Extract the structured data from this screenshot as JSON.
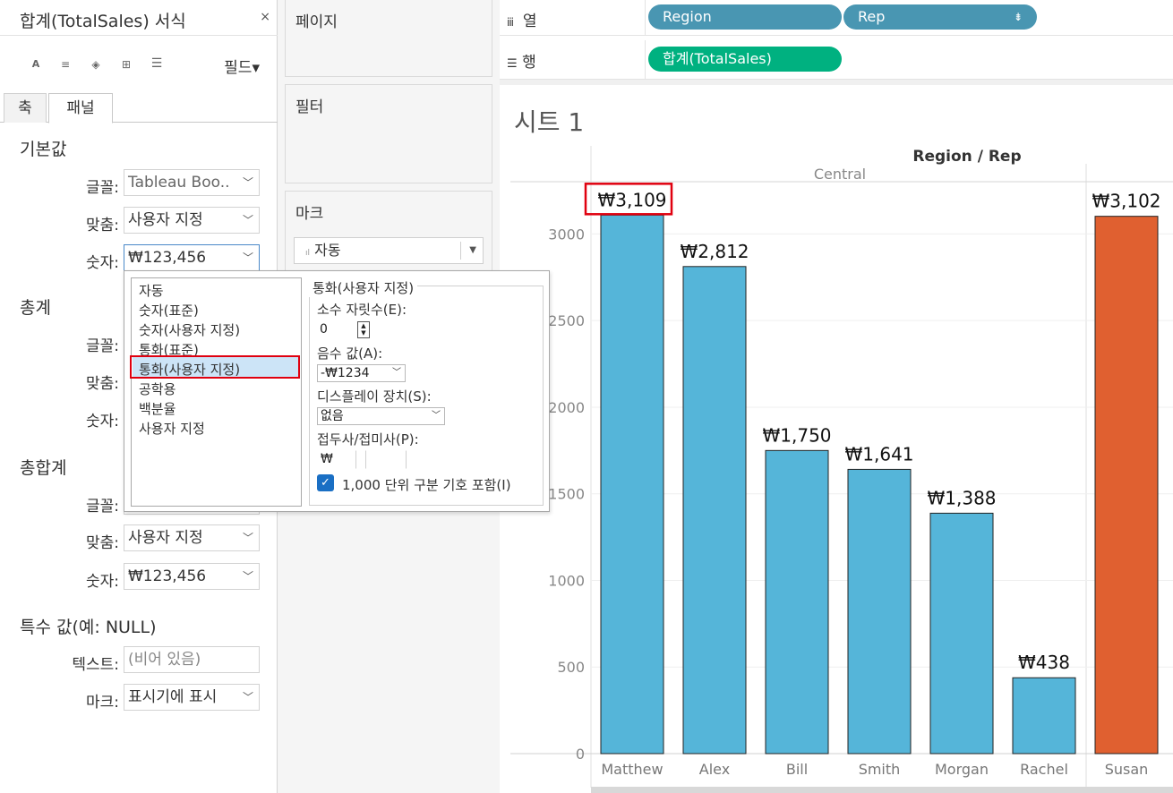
{
  "format_pane": {
    "title": "합계(TotalSales) 서식",
    "close_label": "×",
    "fields_label": "필드▾",
    "tabs": [
      "축",
      "패널"
    ],
    "sections": {
      "default": {
        "title": "기본값",
        "font_label": "글꼴:",
        "font_value": "Tableau Boo..",
        "align_label": "맞춤:",
        "align_value": "사용자 지정",
        "number_label": "숫자:",
        "number_value": "₩123,456"
      },
      "totals": {
        "title": "총계",
        "font_label": "글꼴:",
        "align_label": "맞춤:",
        "number_label": "숫자:"
      },
      "grand_totals": {
        "title": "총합계",
        "font_label": "글꼴:",
        "align_label": "맞춤:",
        "align_value": "사용자 지정",
        "number_label": "숫자:",
        "number_value": "₩123,456"
      },
      "special": {
        "title": "특수 값(예: NULL)",
        "text_label": "텍스트:",
        "text_value": "(비어 있음)",
        "marks_label": "마크:",
        "marks_value": "표시기에 표시"
      }
    }
  },
  "number_popup": {
    "formats": [
      "자동",
      "숫자(표준)",
      "숫자(사용자 지정)",
      "통화(표준)",
      "통화(사용자 지정)",
      "공학용",
      "백분율",
      "사용자 지정"
    ],
    "selected_index": 4,
    "group_title": "통화(사용자 지정)",
    "decimals_label": "소수 자릿수(E):",
    "decimals_value": "0",
    "negative_label": "음수 값(A):",
    "negative_value": "-₩1234",
    "display_units_label": "디스플레이 장치(S):",
    "display_units_value": "없음",
    "prefix_suffix_label": "접두사/접미사(P):",
    "prefix_value": "₩",
    "suffix_value": "",
    "thousands_label": "1,000 단위 구분 기호 포함(I)",
    "thousands_checked": true
  },
  "mid_pane": {
    "pages_title": "페이지",
    "filters_title": "필터",
    "marks_title": "마크",
    "marks_type": "자동"
  },
  "shelves": {
    "columns_label": "열",
    "rows_label": "행",
    "column_pills": [
      "Region",
      "Rep"
    ],
    "row_pills": [
      "합계(TotalSales)"
    ]
  },
  "sheet": {
    "title": "시트 1"
  },
  "colors": {
    "bar_default": "#55b5d9",
    "bar_highlight": "#e06030",
    "dimension_pill": "#4996b2",
    "measure_pill": "#00b180",
    "selection_outline": "#e0000f"
  },
  "chart_data": {
    "type": "bar",
    "header_title": "Region / Rep",
    "regions": [
      {
        "name": "Central",
        "reps": [
          "Matthew",
          "Alex",
          "Bill",
          "Smith",
          "Morgan",
          "Rachel"
        ],
        "values": [
          3109,
          2812,
          1750,
          1641,
          1388,
          438
        ]
      },
      {
        "name": "",
        "reps": [
          "Susan"
        ],
        "values": [
          3102
        ]
      }
    ],
    "data_labels": [
      "₩3,109",
      "₩2,812",
      "₩1,750",
      "₩1,641",
      "₩1,388",
      "₩438",
      "₩3,102"
    ],
    "highlighted_bar": "Susan",
    "selected_label": "₩3,109",
    "y_ticks": [
      0,
      500,
      1000,
      1500,
      2000,
      2500,
      3000
    ],
    "ylim": [
      0,
      3400
    ],
    "grid": true
  }
}
